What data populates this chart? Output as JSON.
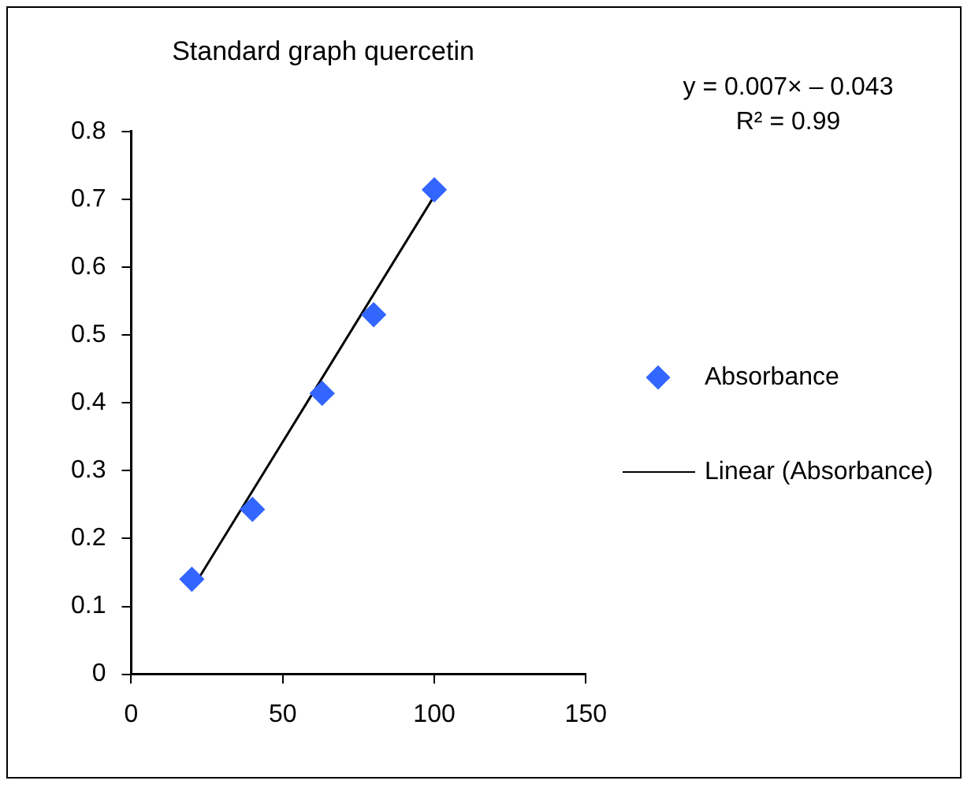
{
  "chart_data": {
    "type": "scatter",
    "title": "Standard graph quercetin",
    "series": [
      {
        "name": "Absorbance",
        "color": "#3366ff",
        "x": [
          20,
          40,
          63,
          80,
          100
        ],
        "values": [
          0.14,
          0.243,
          0.414,
          0.53,
          0.714
        ],
        "marker": "diamond"
      },
      {
        "name": "Linear (Absorbance)",
        "type": "line",
        "color": "#000000",
        "x": [
          20,
          100
        ],
        "values": [
          0.125,
          0.705
        ],
        "marker": "none",
        "line_style": "solid"
      }
    ],
    "xlim": [
      0,
      150
    ],
    "xticks": [
      0,
      50,
      100,
      150
    ],
    "ylim": [
      0,
      0.8
    ],
    "yticks": [
      0,
      0.1,
      0.2,
      0.3,
      0.4,
      0.5,
      0.6,
      0.7,
      0.8
    ],
    "annotations": [
      "y = 0.007× – 0.043",
      "R² = 0.99"
    ],
    "grid": false,
    "legend": "right"
  }
}
